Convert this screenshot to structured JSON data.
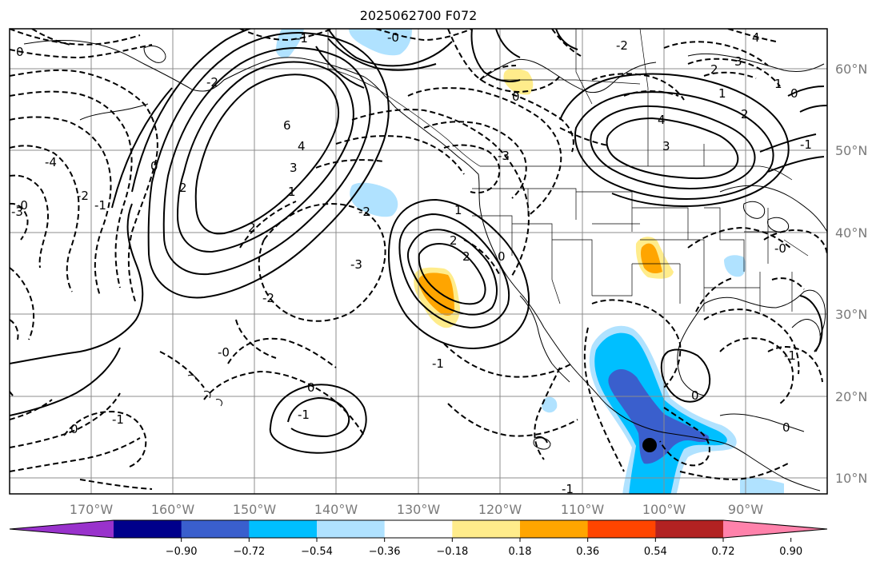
{
  "title": "2025062700 F072",
  "lon_labels": [
    "170°W",
    "160°W",
    "150°W",
    "140°W",
    "130°W",
    "120°W",
    "110°W",
    "100°W",
    "90°W"
  ],
  "lat_labels": [
    "60°N",
    "50°N",
    "40°N",
    "30°N",
    "20°N",
    "10°N"
  ],
  "colorbar": {
    "colors": [
      "#9932cc",
      "#00008b",
      "#3a5fcd",
      "#00bfff",
      "#b0e2ff",
      "#ffffff",
      "#ffec8b",
      "#ffa500",
      "#ff4500",
      "#b22222",
      "#ff82ab"
    ],
    "ticks": [
      "−0.90",
      "−0.72",
      "−0.54",
      "−0.36",
      "−0.18",
      "0.18",
      "0.36",
      "0.54",
      "0.72",
      "0.90"
    ]
  },
  "contour_labels": [
    {
      "t": "0",
      "name": "label-0-nw"
    },
    {
      "t": "-1",
      "name": "label-m1-north"
    },
    {
      "t": "-0",
      "name": "label-m0-north"
    },
    {
      "t": "-2",
      "name": "label-m2-north"
    },
    {
      "t": "4",
      "name": "label-4-ne"
    },
    {
      "t": "3",
      "name": "label-3-ne"
    },
    {
      "t": "2",
      "name": "label-2-ne"
    },
    {
      "t": "1",
      "name": "label-1-ne"
    },
    {
      "t": "0",
      "name": "label-0-ne"
    },
    {
      "t": "-1",
      "name": "label-m1-ne"
    },
    {
      "t": "2",
      "name": "label-2-canada"
    },
    {
      "t": "1",
      "name": "label-1-canada"
    },
    {
      "t": "4",
      "name": "label-4-canada"
    },
    {
      "t": "3",
      "name": "label-3-canada"
    },
    {
      "t": "0",
      "name": "label-0-hudson"
    },
    {
      "t": "6",
      "name": "label-6-gulf"
    },
    {
      "t": "4",
      "name": "label-4-gulf"
    },
    {
      "t": "3",
      "name": "label-3-gulf"
    },
    {
      "t": "2",
      "name": "label-2-gulf"
    },
    {
      "t": "0",
      "name": "label-0-gulf"
    },
    {
      "t": "1",
      "name": "label-1-gulf"
    },
    {
      "t": "2",
      "name": "label-2-gulf-b"
    },
    {
      "t": "-2",
      "name": "label-m2-bc"
    },
    {
      "t": "-3",
      "name": "label-m3-bc"
    },
    {
      "t": "-4",
      "name": "label-m4-west"
    },
    {
      "t": "-2",
      "name": "label-m2-west"
    },
    {
      "t": "-1",
      "name": "label-m1-west"
    },
    {
      "t": "-0",
      "name": "label-m0-west"
    },
    {
      "t": "-3",
      "name": "label-m3-west"
    },
    {
      "t": "-3",
      "name": "label-m3-central"
    },
    {
      "t": "-2",
      "name": "label-m2-central"
    },
    {
      "t": "-2",
      "name": "label-m2-low"
    },
    {
      "t": "2",
      "name": "label-2-low"
    },
    {
      "t": "2",
      "name": "label-2-low-b"
    },
    {
      "t": "0",
      "name": "label-0-low"
    },
    {
      "t": "-0",
      "name": "label-m0-hawaii"
    },
    {
      "t": "0",
      "name": "label-0-hawaii"
    },
    {
      "t": "-1",
      "name": "label-m1-hawaii"
    },
    {
      "t": "-1",
      "name": "label-m1-south"
    },
    {
      "t": "0",
      "name": "label-0-sw"
    },
    {
      "t": "-1",
      "name": "label-m1-sw"
    },
    {
      "t": "-1",
      "name": "label-m1-baja"
    },
    {
      "t": "1",
      "name": "label-1-bottom"
    },
    {
      "t": "-0",
      "name": "label-m0-texas"
    },
    {
      "t": "0",
      "name": "label-0-gulfmex"
    },
    {
      "t": "-1",
      "name": "label-m1-florida"
    },
    {
      "t": "0",
      "name": "label-0-se"
    }
  ]
}
